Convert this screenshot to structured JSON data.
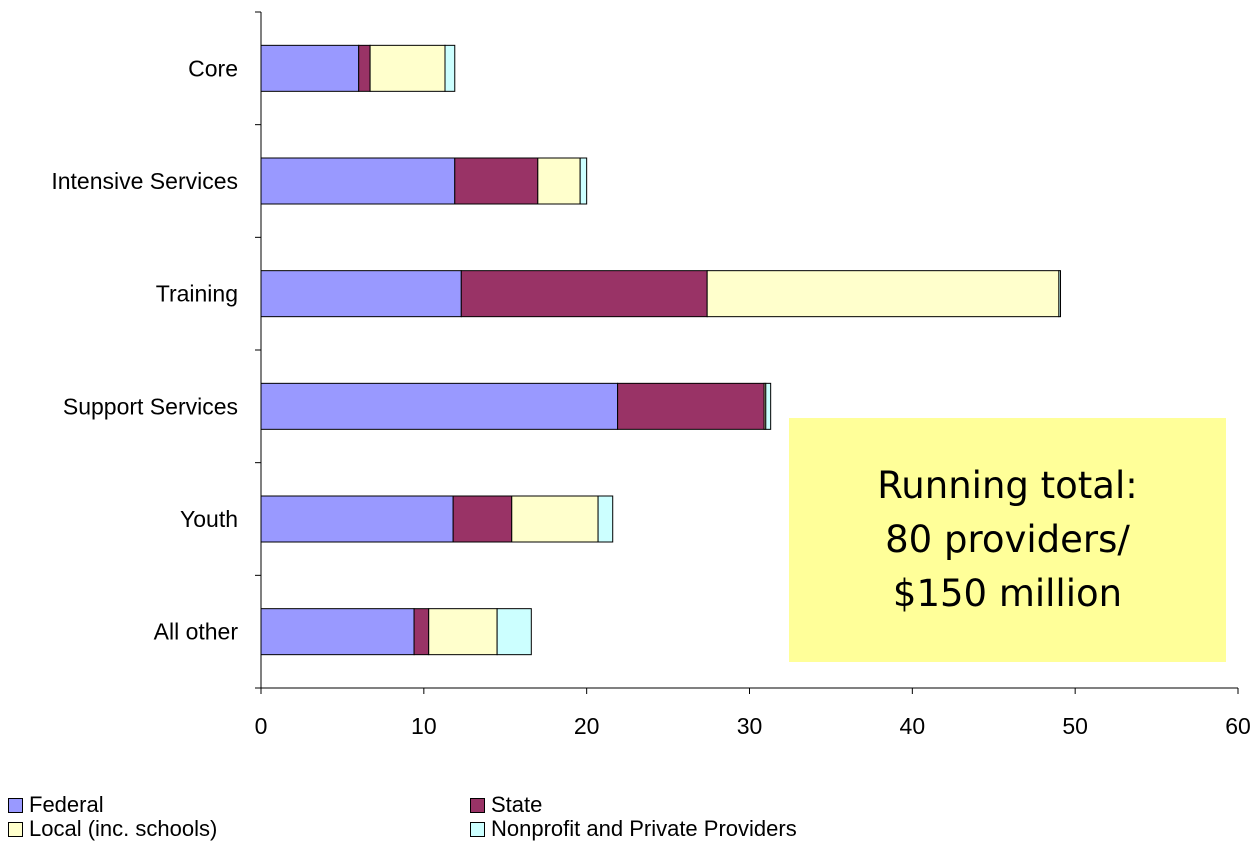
{
  "chart_data": {
    "type": "bar",
    "orientation": "horizontal",
    "stacked": true,
    "categories": [
      "Core",
      "Intensive Services",
      "Training",
      "Support Services",
      "Youth",
      "All other"
    ],
    "series": [
      {
        "name": "Federal",
        "color": "#9999ff",
        "values": [
          6,
          11.9,
          12.3,
          21.9,
          11.8,
          9.4
        ]
      },
      {
        "name": "State",
        "color": "#993366",
        "values": [
          0.7,
          5.1,
          15.1,
          9.0,
          3.6,
          0.9
        ]
      },
      {
        "name": "Local (inc. schools)",
        "color": "#ffffcc",
        "values": [
          4.6,
          2.6,
          21.6,
          0.1,
          5.3,
          4.2
        ]
      },
      {
        "name": "Nonprofit and Private Providers",
        "color": "#ccffff",
        "values": [
          0.6,
          0.4,
          0.1,
          0.3,
          0.9,
          2.1
        ]
      }
    ],
    "xlim": [
      0,
      60
    ],
    "xticks": [
      "0",
      "10",
      "20",
      "30",
      "40",
      "50",
      "60"
    ],
    "grid": false,
    "legend_position": "bottom"
  },
  "callout": {
    "line1": "Running total:",
    "line2": "80 providers/",
    "line3": "$150 million"
  }
}
